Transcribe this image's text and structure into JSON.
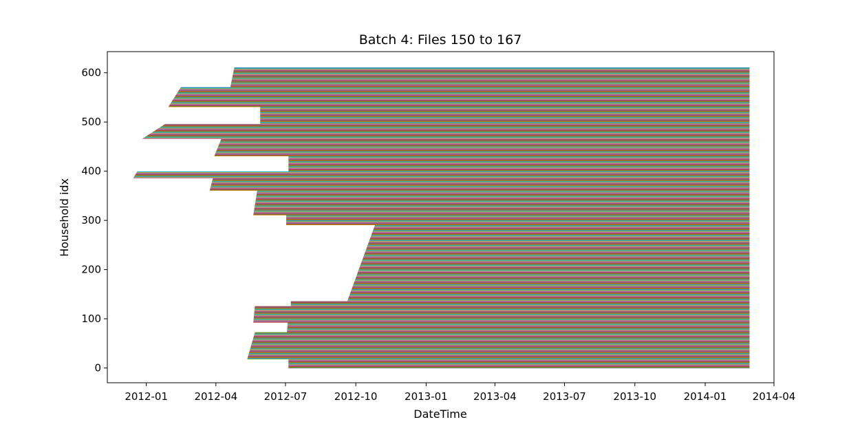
{
  "chart_data": {
    "type": "timeline",
    "title": "Batch 4: Files 150 to 167",
    "xlabel": "DateTime",
    "ylabel": "Household idx",
    "x_ticks": [
      "2012-01",
      "2012-04",
      "2012-07",
      "2012-10",
      "2013-01",
      "2013-04",
      "2013-07",
      "2013-10",
      "2014-01",
      "2014-04"
    ],
    "y_ticks": [
      0,
      100,
      200,
      300,
      400,
      500,
      600
    ],
    "xlim": [
      "2011-11-11",
      "2014-04-01"
    ],
    "ylim": [
      -30,
      643
    ],
    "grid": false,
    "legend": "none",
    "series_count": 611,
    "end_date": "2014-02-28",
    "start_segments": [
      {
        "from_idx": 0,
        "to_idx": 17,
        "start_from": "2012-07-05",
        "start_to": "2012-07-05"
      },
      {
        "from_idx": 18,
        "to_idx": 72,
        "start_from": "2012-05-12",
        "start_to": "2012-05-22"
      },
      {
        "from_idx": 73,
        "to_idx": 92,
        "start_from": "2012-07-03",
        "start_to": "2012-07-04"
      },
      {
        "from_idx": 93,
        "to_idx": 125,
        "start_from": "2012-05-20",
        "start_to": "2012-05-22"
      },
      {
        "from_idx": 126,
        "to_idx": 135,
        "start_from": "2012-07-08",
        "start_to": "2012-07-08"
      },
      {
        "from_idx": 136,
        "to_idx": 290,
        "start_from": "2012-09-20",
        "start_to": "2012-10-26"
      },
      {
        "from_idx": 291,
        "to_idx": 310,
        "start_from": "2012-07-02",
        "start_to": "2012-07-02"
      },
      {
        "from_idx": 311,
        "to_idx": 360,
        "start_from": "2012-05-20",
        "start_to": "2012-05-25"
      },
      {
        "from_idx": 361,
        "to_idx": 385,
        "start_from": "2012-03-24",
        "start_to": "2012-03-28"
      },
      {
        "from_idx": 386,
        "to_idx": 399,
        "start_from": "2011-12-15",
        "start_to": "2011-12-20"
      },
      {
        "from_idx": 400,
        "to_idx": 430,
        "start_from": "2012-07-05",
        "start_to": "2012-07-05"
      },
      {
        "from_idx": 431,
        "to_idx": 465,
        "start_from": "2012-03-30",
        "start_to": "2012-04-08"
      },
      {
        "from_idx": 466,
        "to_idx": 495,
        "start_from": "2011-12-27",
        "start_to": "2012-01-25"
      },
      {
        "from_idx": 496,
        "to_idx": 530,
        "start_from": "2012-05-29",
        "start_to": "2012-05-29"
      },
      {
        "from_idx": 531,
        "to_idx": 570,
        "start_from": "2012-01-30",
        "start_to": "2012-02-15"
      },
      {
        "from_idx": 571,
        "to_idx": 610,
        "start_from": "2012-04-20",
        "start_to": "2012-04-25"
      }
    ],
    "colors": [
      "#1f77b4",
      "#ff7f0e",
      "#2ca02c",
      "#d62728",
      "#9467bd",
      "#8c564b",
      "#e377c2",
      "#7f7f7f",
      "#bcbd22",
      "#17becf"
    ]
  }
}
